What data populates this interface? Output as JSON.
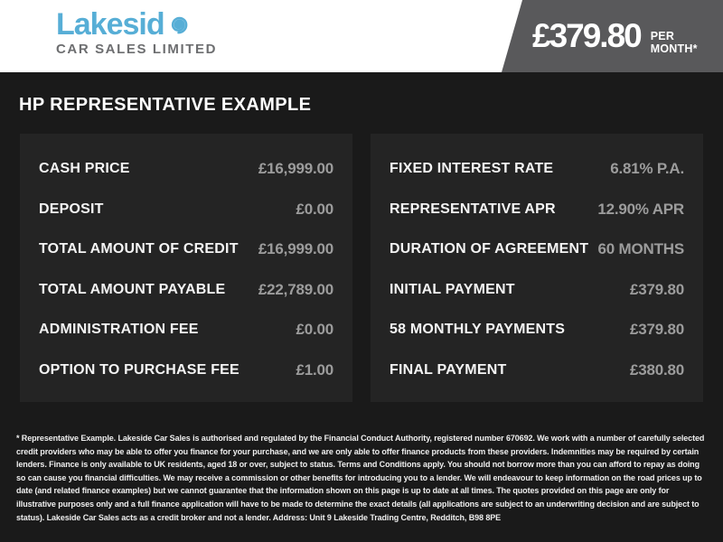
{
  "header": {
    "logo": {
      "name_text": "Lakesid",
      "spiral_icon": "spiral-e-icon",
      "tagline": "CAR SALES LIMITED"
    },
    "price_banner": {
      "amount": "£379.80",
      "period": "PER MONTH*"
    }
  },
  "page_title": "HP REPRESENTATIVE EXAMPLE",
  "panels": [
    {
      "name": "left",
      "rows": [
        {
          "label": "CASH PRICE",
          "value": "£16,999.00"
        },
        {
          "label": "DEPOSIT",
          "value": "£0.00"
        },
        {
          "label": "TOTAL AMOUNT OF CREDIT",
          "value": "£16,999.00"
        },
        {
          "label": "TOTAL AMOUNT PAYABLE",
          "value": "£22,789.00"
        },
        {
          "label": "ADMINISTRATION FEE",
          "value": "£0.00"
        },
        {
          "label": "OPTION TO PURCHASE FEE",
          "value": "£1.00"
        }
      ]
    },
    {
      "name": "right",
      "rows": [
        {
          "label": "FIXED INTEREST RATE",
          "value": "6.81% P.A."
        },
        {
          "label": "REPRESENTATIVE APR",
          "value": "12.90% APR"
        },
        {
          "label": "DURATION OF AGREEMENT",
          "value": "60 MONTHS"
        },
        {
          "label": "INITIAL PAYMENT",
          "value": "£379.80"
        },
        {
          "label": "58 MONTHLY PAYMENTS",
          "value": "£379.80"
        },
        {
          "label": "FINAL PAYMENT",
          "value": "£380.80"
        }
      ]
    }
  ],
  "disclaimer": "* Representative Example. Lakeside Car Sales is authorised and regulated by the Financial Conduct Authority, registered number 670692. We work with a number of carefully selected credit providers who may be able to offer you finance for your purchase, and we are only able to offer finance products from these providers. Indemnities may be required by certain lenders. Finance is only available to UK residents, aged 18 or over, subject to status. Terms and Conditions apply. You should not borrow more than you can afford to repay as doing so can cause you financial difficulties. We may receive a commission or other benefits for introducing you to a lender. We will endeavour to keep information on the road prices up to date (and related finance examples) but we cannot guarantee that the information shown on this page is up to date at all times. The quotes provided on this page are only for illustrative purposes only and a full finance application will have to be made to determine the exact details (all applications are subject to an underwriting decision and are subject to status). Lakeside Car Sales acts as a credit broker and not a lender. Address: Unit 9 Lakeside Trading Centre, Redditch, B98 8PE",
  "colors": {
    "logo_blue": "#57aed6",
    "tagline_gray": "#6d6e70",
    "banner_gray": "#59595b",
    "page_bg": "#1a1a1a",
    "panel_bg": "#242424",
    "label_white": "#f4f4f4",
    "value_gray": "#9c9c9c",
    "disclaimer_white": "#efefef"
  }
}
